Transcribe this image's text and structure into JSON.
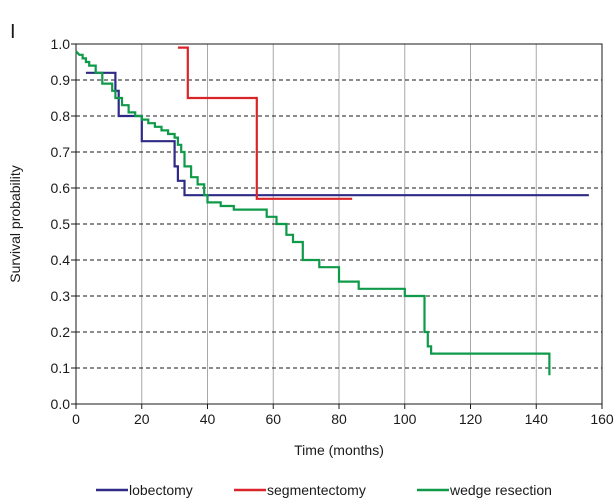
{
  "panel_label": "I",
  "chart_data": {
    "type": "line",
    "xlabel": "Time (months)",
    "ylabel": "Survival probability",
    "xlim": [
      0,
      160
    ],
    "ylim": [
      0,
      1.0
    ],
    "x_ticks": [
      0,
      20,
      40,
      60,
      80,
      100,
      120,
      140,
      160
    ],
    "x_tick_labels": [
      "0",
      "20",
      "40",
      "60",
      "80",
      "100",
      "120",
      "140",
      "160"
    ],
    "y_ticks": [
      0,
      0.1,
      0.2,
      0.3,
      0.4,
      0.5,
      0.6,
      0.7,
      0.8,
      0.9,
      1.0
    ],
    "y_tick_labels": [
      "0.0",
      "0.1",
      "0.2",
      "0.3",
      "0.4",
      "0.5",
      "0.6",
      "0.7",
      "0.8",
      "0.9",
      "1.0"
    ],
    "grid": true,
    "legend_position": "bottom",
    "series": [
      {
        "name": "lobectomy",
        "color": "#2e2a86",
        "x": [
          3,
          12,
          12,
          13,
          13,
          20,
          20,
          30,
          30,
          31,
          31,
          33,
          33,
          156
        ],
        "y": [
          0.92,
          0.92,
          0.87,
          0.87,
          0.8,
          0.8,
          0.73,
          0.73,
          0.66,
          0.66,
          0.62,
          0.62,
          0.58,
          0.58
        ]
      },
      {
        "name": "segmentectomy",
        "color": "#d9252a",
        "x": [
          31,
          34,
          34,
          55,
          55,
          84
        ],
        "y": [
          0.99,
          0.99,
          0.85,
          0.85,
          0.57,
          0.57
        ]
      },
      {
        "name": "wedge resection",
        "color": "#0e9a48",
        "x": [
          0,
          1,
          2,
          2,
          3,
          3,
          4,
          4,
          6,
          6,
          8,
          8,
          11,
          11,
          12,
          12,
          14,
          14,
          16,
          16,
          18,
          18,
          20,
          20,
          22,
          22,
          24,
          24,
          26,
          26,
          28,
          28,
          30,
          30,
          31,
          31,
          32,
          32,
          33,
          33,
          35,
          35,
          37,
          37,
          39,
          39,
          40,
          40,
          44,
          44,
          48,
          48,
          58,
          58,
          61,
          61,
          64,
          64,
          66,
          66,
          69,
          69,
          74,
          74,
          80,
          80,
          82,
          82,
          86,
          86,
          100,
          100,
          106,
          106,
          107,
          107,
          108,
          108,
          120,
          120,
          144,
          144
        ],
        "y": [
          0.98,
          0.97,
          0.97,
          0.96,
          0.96,
          0.95,
          0.95,
          0.94,
          0.94,
          0.92,
          0.92,
          0.89,
          0.89,
          0.87,
          0.87,
          0.85,
          0.85,
          0.83,
          0.83,
          0.81,
          0.81,
          0.8,
          0.8,
          0.79,
          0.79,
          0.78,
          0.78,
          0.77,
          0.77,
          0.76,
          0.76,
          0.75,
          0.75,
          0.74,
          0.74,
          0.72,
          0.72,
          0.7,
          0.7,
          0.66,
          0.66,
          0.63,
          0.63,
          0.61,
          0.61,
          0.58,
          0.58,
          0.56,
          0.56,
          0.55,
          0.55,
          0.54,
          0.54,
          0.52,
          0.52,
          0.5,
          0.5,
          0.47,
          0.47,
          0.45,
          0.45,
          0.4,
          0.4,
          0.38,
          0.38,
          0.34,
          0.34,
          0.34,
          0.34,
          0.32,
          0.32,
          0.3,
          0.3,
          0.2,
          0.2,
          0.16,
          0.16,
          0.14,
          0.14,
          0.14,
          0.14,
          0.08
        ]
      }
    ]
  }
}
